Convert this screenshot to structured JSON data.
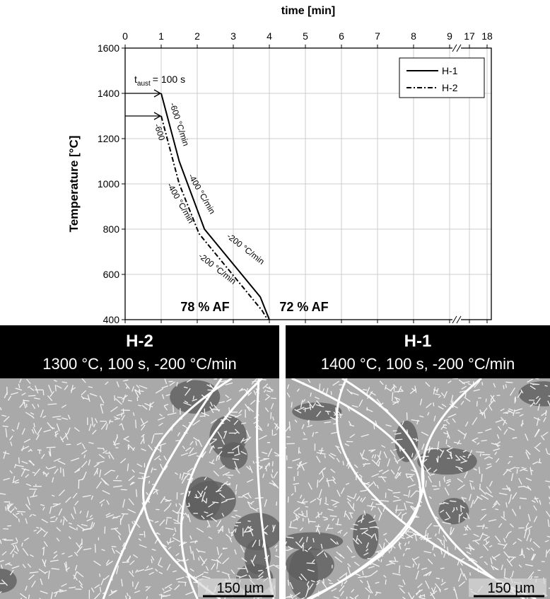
{
  "chart_data": {
    "type": "line",
    "x_label": "time [min]",
    "y_label": "Temperature [°C]",
    "xlim": [
      0,
      18
    ],
    "xticks": [
      0,
      1,
      2,
      3,
      4,
      5,
      6,
      7,
      8,
      9,
      17,
      18
    ],
    "ylim": [
      400,
      1600
    ],
    "yticks": [
      400,
      600,
      800,
      1000,
      1200,
      1400,
      1600
    ],
    "grid": true,
    "legend": "upper right",
    "series": [
      {
        "name": "H-1",
        "color": "#000000",
        "dash": "solid",
        "x": [
          1,
          1.5,
          2.2,
          3.75,
          4
        ],
        "values": [
          1400,
          1100,
          800,
          500,
          400
        ]
      },
      {
        "name": "H-2",
        "color": "#000000",
        "dash": "dashdot",
        "x": [
          1,
          1.5,
          2.05,
          3.8,
          3.95
        ],
        "values": [
          1300,
          1000,
          780,
          440,
          400
        ]
      }
    ],
    "aust_label": {
      "main": "t",
      "sub": "aust",
      "rest": "= 100 s"
    },
    "annotations": [
      "-600 °C/min",
      "-400 °C/min",
      "-200 °C/min",
      "-600",
      "-400 °C/min",
      "-200 °C/min",
      "78 % AF",
      "72 % AF"
    ]
  },
  "panels": [
    {
      "title": "H-2",
      "subtitle": "1300 °C, 100 s, -200 °C/min",
      "scale": "150 µm"
    },
    {
      "title": "H-1",
      "subtitle": "1400 °C, 100 s, -200 °C/min",
      "scale": "150 µm"
    }
  ]
}
